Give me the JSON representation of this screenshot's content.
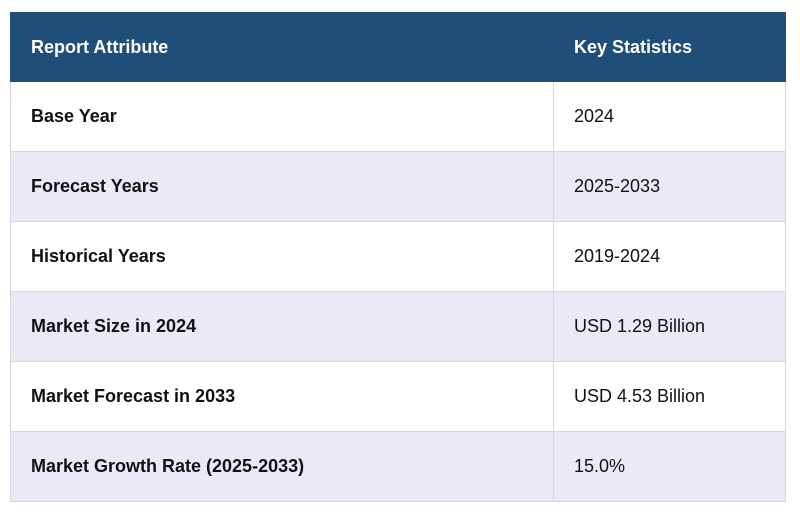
{
  "table": {
    "headers": [
      "Report Attribute",
      "Key Statistics"
    ],
    "rows": [
      [
        "Base Year",
        "2024"
      ],
      [
        "Forecast Years",
        "2025-2033"
      ],
      [
        "Historical Years",
        "2019-2024"
      ],
      [
        "Market Size in 2024",
        "USD 1.29 Billion"
      ],
      [
        "Market Forecast in 2033",
        "USD 4.53 Billion"
      ],
      [
        "Market Growth Rate (2025-2033)",
        "15.0%"
      ]
    ]
  },
  "colors": {
    "header_bg": "#1f4e79",
    "header_text": "#ffffff",
    "row_alt_bg": "#e9eaf6",
    "row_bg": "#ffffff",
    "border": "#d6d6d6"
  }
}
